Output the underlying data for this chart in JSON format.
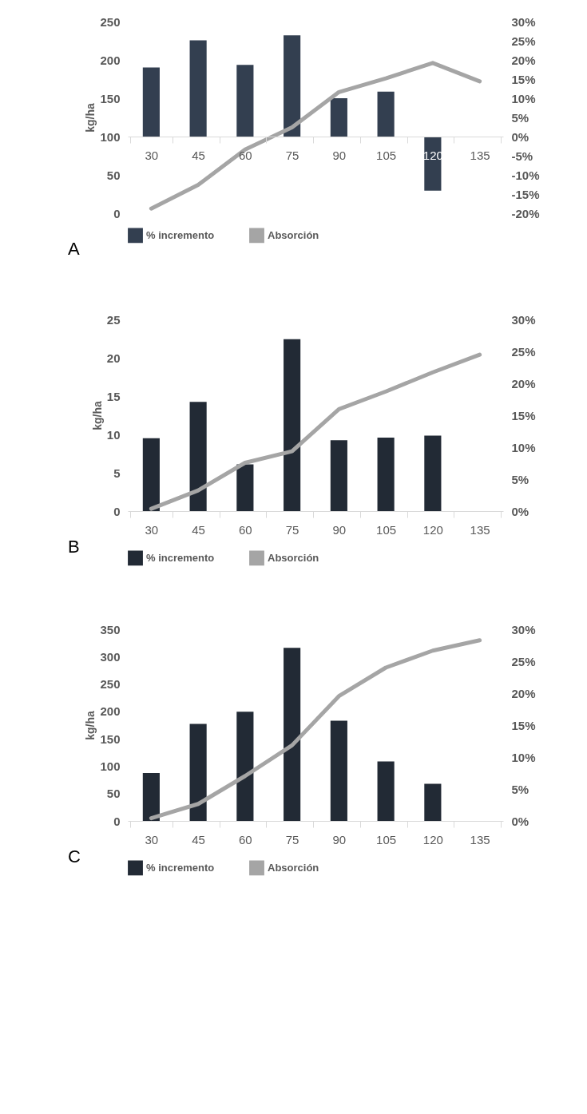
{
  "chart_data": [
    {
      "type": "bar",
      "categories": [
        "30",
        "45",
        "60",
        "75",
        "90",
        "105",
        "120",
        "135"
      ],
      "ylabel": "kg/ha",
      "ylim": [
        0,
        250
      ],
      "yticks": [
        0,
        50,
        100,
        150,
        200,
        250
      ],
      "y2lim": [
        -20,
        30
      ],
      "y2ticks": [
        {
          "value": -20,
          "label": "-20%"
        },
        {
          "value": -15,
          "label": "-15%"
        },
        {
          "value": -10,
          "label": "-10%"
        },
        {
          "value": -5,
          "label": "-5%"
        },
        {
          "value": 0,
          "label": "0%"
        },
        {
          "value": 5,
          "label": "5%"
        },
        {
          "value": 10,
          "label": "10%"
        },
        {
          "value": 15,
          "label": "15%"
        },
        {
          "value": 20,
          "label": "20%"
        },
        {
          "value": 25,
          "label": "25%"
        },
        {
          "value": 30,
          "label": "30%"
        }
      ],
      "series": [
        {
          "name": "% incremento",
          "axis": "y2",
          "color": "#333f50",
          "values": [
            18,
            25.1,
            18.7,
            26.4,
            10,
            11.7,
            -14.1,
            null
          ]
        },
        {
          "name": "Absorción",
          "type": "line",
          "color": "#a5a5a5",
          "values": [
            6,
            37,
            83,
            112,
            158,
            176,
            196,
            172
          ]
        }
      ],
      "legend": "bottom",
      "annotations": [
        "A"
      ]
    },
    {
      "type": "bar",
      "categories": [
        "30",
        "45",
        "60",
        "75",
        "90",
        "105",
        "120",
        "135"
      ],
      "ylabel": "kg/ha",
      "ylim": [
        0,
        25
      ],
      "yticks": [
        0,
        5,
        10,
        15,
        20,
        25
      ],
      "y2lim": [
        0,
        30
      ],
      "y2ticks": [
        {
          "value": 0,
          "label": "0%"
        },
        {
          "value": 5,
          "label": "5%"
        },
        {
          "value": 10,
          "label": "10%"
        },
        {
          "value": 15,
          "label": "15%"
        },
        {
          "value": 20,
          "label": "20%"
        },
        {
          "value": 25,
          "label": "25%"
        },
        {
          "value": 30,
          "label": "30%"
        }
      ],
      "series": [
        {
          "name": "% incremento",
          "axis": "y2",
          "color": "#222a35",
          "values": [
            11.4,
            17.1,
            7.3,
            26.9,
            11.1,
            11.5,
            11.8,
            null
          ]
        },
        {
          "name": "Absorción",
          "type": "line",
          "color": "#a5a5a5",
          "values": [
            0.3,
            2.7,
            6.3,
            7.8,
            13.3,
            15.6,
            18.1,
            20.4
          ]
        }
      ],
      "legend": "bottom",
      "annotations": [
        "B"
      ]
    },
    {
      "type": "bar",
      "categories": [
        "30",
        "45",
        "60",
        "75",
        "90",
        "105",
        "120",
        "135"
      ],
      "ylabel": "kg/ha",
      "ylim": [
        0,
        350
      ],
      "yticks": [
        0,
        50,
        100,
        150,
        200,
        250,
        300,
        350
      ],
      "y2lim": [
        0,
        30
      ],
      "y2ticks": [
        {
          "value": 0,
          "label": "0%"
        },
        {
          "value": 5,
          "label": "5%"
        },
        {
          "value": 10,
          "label": "10%"
        },
        {
          "value": 15,
          "label": "15%"
        },
        {
          "value": 20,
          "label": "20%"
        },
        {
          "value": 25,
          "label": "25%"
        },
        {
          "value": 30,
          "label": "30%"
        }
      ],
      "series": [
        {
          "name": "% incremento",
          "axis": "y2",
          "color": "#222a35",
          "values": [
            7.5,
            15.2,
            17.1,
            27.1,
            15.7,
            9.3,
            5.8,
            null
          ]
        },
        {
          "name": "Absorción",
          "type": "line",
          "color": "#a5a5a5",
          "values": [
            5,
            31,
            82,
            138,
            228,
            280,
            311,
            330
          ]
        }
      ],
      "legend": "bottom",
      "annotations": [
        "C"
      ]
    }
  ]
}
